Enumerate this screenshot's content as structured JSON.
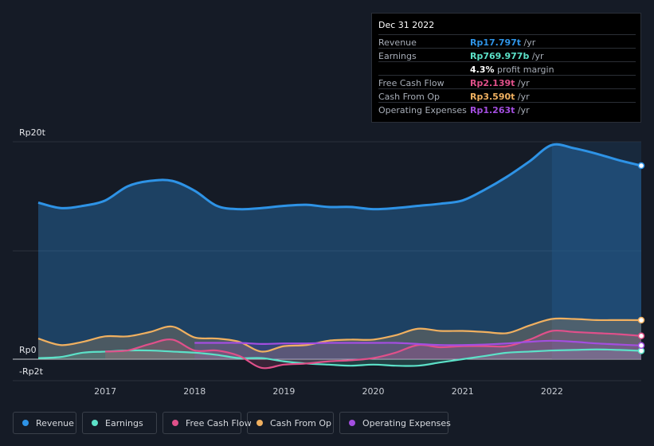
{
  "tooltip": {
    "date": "Dec 31 2022",
    "rows": [
      {
        "label": "Revenue",
        "value": "Rp17.797t",
        "unit": " /yr",
        "color": "#2e93e6"
      },
      {
        "label": "Earnings",
        "value": "Rp769.977b",
        "unit": " /yr",
        "color": "#5ce1c8"
      },
      {
        "label": "",
        "value": "4.3%",
        "unit": " profit margin",
        "color": "#ffffff"
      },
      {
        "label": "Free Cash Flow",
        "value": "Rp2.139t",
        "unit": " /yr",
        "color": "#e0508a"
      },
      {
        "label": "Cash From Op",
        "value": "Rp3.590t",
        "unit": " /yr",
        "color": "#f0b060"
      },
      {
        "label": "Operating Expenses",
        "value": "Rp1.263t",
        "unit": " /yr",
        "color": "#a34ee0"
      }
    ]
  },
  "legend": [
    {
      "label": "Revenue",
      "color": "#2e93e6"
    },
    {
      "label": "Earnings",
      "color": "#5ce1c8"
    },
    {
      "label": "Free Cash Flow",
      "color": "#e0508a"
    },
    {
      "label": "Cash From Op",
      "color": "#f0b060"
    },
    {
      "label": "Operating Expenses",
      "color": "#a34ee0"
    }
  ],
  "chart_data": {
    "type": "area",
    "y_unit": "Rp trillion",
    "ylim": [
      -2,
      20
    ],
    "xlim": [
      2016.25,
      2023.0
    ],
    "y_tick_labels": [
      {
        "value": 20,
        "label": "Rp20t"
      },
      {
        "value": 0,
        "label": "Rp0"
      },
      {
        "value": -2,
        "label": "-Rp2t"
      }
    ],
    "x_ticks": [
      2017,
      2018,
      2019,
      2020,
      2021,
      2022
    ],
    "x_tick_labels": [
      "2017",
      "2018",
      "2019",
      "2020",
      "2021",
      "2022"
    ],
    "highlight_from": 2022.0,
    "series": [
      {
        "name": "Revenue",
        "color": "#2e93e6",
        "x": [
          2016.25,
          2016.5,
          2016.75,
          2017.0,
          2017.25,
          2017.5,
          2017.75,
          2018.0,
          2018.25,
          2018.5,
          2018.75,
          2019.0,
          2019.25,
          2019.5,
          2019.75,
          2020.0,
          2020.25,
          2020.5,
          2020.75,
          2021.0,
          2021.25,
          2021.5,
          2021.75,
          2022.0,
          2022.25,
          2022.5,
          2022.75,
          2023.0
        ],
        "y": [
          14.4,
          13.9,
          14.1,
          14.6,
          15.9,
          16.4,
          16.4,
          15.5,
          14.1,
          13.8,
          13.9,
          14.1,
          14.2,
          14.0,
          14.0,
          13.8,
          13.9,
          14.1,
          14.3,
          14.6,
          15.6,
          16.8,
          18.2,
          19.7,
          19.4,
          18.9,
          18.3,
          17.8
        ]
      },
      {
        "name": "Earnings",
        "color": "#5ce1c8",
        "x": [
          2016.25,
          2016.5,
          2016.75,
          2017.0,
          2017.25,
          2017.5,
          2017.75,
          2018.0,
          2018.25,
          2018.5,
          2018.75,
          2019.0,
          2019.25,
          2019.5,
          2019.75,
          2020.0,
          2020.25,
          2020.5,
          2020.75,
          2021.0,
          2021.25,
          2021.5,
          2021.75,
          2022.0,
          2022.25,
          2022.5,
          2022.75,
          2023.0
        ],
        "y": [
          0.1,
          0.2,
          0.6,
          0.7,
          0.8,
          0.8,
          0.7,
          0.6,
          0.4,
          0.1,
          0.1,
          -0.2,
          -0.4,
          -0.5,
          -0.6,
          -0.5,
          -0.6,
          -0.6,
          -0.3,
          0.0,
          0.3,
          0.6,
          0.7,
          0.8,
          0.85,
          0.9,
          0.85,
          0.77
        ]
      },
      {
        "name": "Free Cash Flow",
        "color": "#e0508a",
        "x": [
          2017.0,
          2017.25,
          2017.5,
          2017.75,
          2018.0,
          2018.25,
          2018.5,
          2018.75,
          2019.0,
          2019.25,
          2019.5,
          2019.75,
          2020.0,
          2020.25,
          2020.5,
          2020.75,
          2021.0,
          2021.25,
          2021.5,
          2021.75,
          2022.0,
          2022.25,
          2022.5,
          2022.75,
          2023.0
        ],
        "y": [
          0.7,
          0.8,
          1.4,
          1.8,
          0.8,
          0.8,
          0.3,
          -0.8,
          -0.5,
          -0.4,
          -0.2,
          -0.1,
          0.1,
          0.6,
          1.3,
          1.1,
          1.2,
          1.2,
          1.2,
          1.8,
          2.6,
          2.5,
          2.4,
          2.3,
          2.14
        ]
      },
      {
        "name": "Cash From Op",
        "color": "#f0b060",
        "x": [
          2016.25,
          2016.5,
          2016.75,
          2017.0,
          2017.25,
          2017.5,
          2017.75,
          2018.0,
          2018.25,
          2018.5,
          2018.75,
          2019.0,
          2019.25,
          2019.5,
          2019.75,
          2020.0,
          2020.25,
          2020.5,
          2020.75,
          2021.0,
          2021.25,
          2021.5,
          2021.75,
          2022.0,
          2022.25,
          2022.5,
          2022.75,
          2023.0
        ],
        "y": [
          1.9,
          1.3,
          1.6,
          2.1,
          2.1,
          2.5,
          3.0,
          2.0,
          1.9,
          1.6,
          0.7,
          1.2,
          1.3,
          1.7,
          1.8,
          1.8,
          2.2,
          2.8,
          2.6,
          2.6,
          2.5,
          2.4,
          3.1,
          3.7,
          3.7,
          3.6,
          3.6,
          3.59
        ]
      },
      {
        "name": "Operating Expenses",
        "color": "#a34ee0",
        "x": [
          2018.0,
          2018.25,
          2018.5,
          2018.75,
          2019.0,
          2019.25,
          2019.5,
          2019.75,
          2020.0,
          2020.25,
          2020.5,
          2020.75,
          2021.0,
          2021.25,
          2021.5,
          2021.75,
          2022.0,
          2022.25,
          2022.5,
          2022.75,
          2023.0
        ],
        "y": [
          1.5,
          1.5,
          1.5,
          1.4,
          1.45,
          1.45,
          1.5,
          1.5,
          1.5,
          1.5,
          1.4,
          1.3,
          1.3,
          1.35,
          1.45,
          1.6,
          1.7,
          1.6,
          1.45,
          1.35,
          1.26
        ]
      }
    ]
  }
}
